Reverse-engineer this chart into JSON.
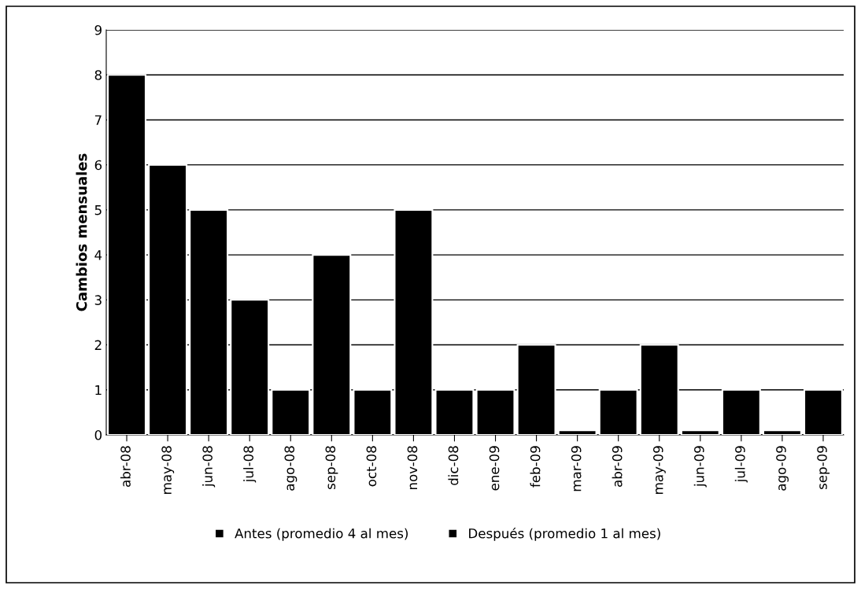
{
  "chart_data": {
    "type": "bar",
    "ylabel": "Cambios mensuales",
    "categories": [
      "abr-08",
      "may-08",
      "jun-08",
      "jul-08",
      "ago-08",
      "sep-08",
      "oct-08",
      "nov-08",
      "dic-08",
      "ene-09",
      "feb-09",
      "mar-09",
      "abr-09",
      "may-09",
      "jun-09",
      "jul-09",
      "ago-09",
      "sep-09"
    ],
    "series": [
      {
        "name": "Antes (promedio 4 al mes)",
        "color": "#000000",
        "values": [
          8,
          6,
          5,
          3,
          1,
          4,
          1,
          5,
          null,
          null,
          null,
          null,
          null,
          null,
          null,
          null,
          null,
          null
        ]
      },
      {
        "name": "Después (promedio 1 al mes)",
        "color": "#000000",
        "values": [
          null,
          null,
          null,
          null,
          null,
          null,
          null,
          null,
          1,
          1,
          2,
          0.1,
          1,
          2,
          0.1,
          1,
          0.1,
          1
        ]
      }
    ],
    "ylim": [
      0,
      9
    ],
    "yticks": [
      0,
      1,
      2,
      3,
      4,
      5,
      6,
      7,
      8,
      9
    ],
    "grid": "y",
    "legend": "bottom"
  }
}
